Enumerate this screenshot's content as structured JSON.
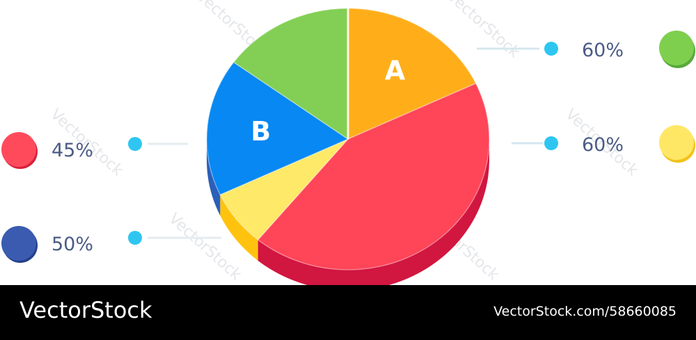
{
  "chart_data": {
    "type": "pie",
    "title": "",
    "slices": [
      {
        "label": "A",
        "share": 0.18,
        "color": "#ffae1a",
        "side": "#e69a10"
      },
      {
        "label": "",
        "share": 0.43,
        "color": "#ff4558",
        "side": "#d1163f"
      },
      {
        "label": "",
        "share": 0.07,
        "color": "#ffe968",
        "side": "#ffc30f"
      },
      {
        "label": "B",
        "share": 0.17,
        "color": "#0788f2",
        "side": "#2b5fb8"
      },
      {
        "label": "",
        "share": 0.15,
        "color": "#83cf55",
        "side": "#6ab63f"
      }
    ],
    "legend": {
      "right": [
        {
          "value": "60%",
          "swatch": "#7fcf4f",
          "swatch_edge": "#58a83a",
          "dot": "#2ec6f0"
        },
        {
          "value": "60%",
          "swatch": "#ffe766",
          "swatch_edge": "#f2c21a",
          "dot": "#2ec6f0"
        }
      ],
      "left": [
        {
          "value": "45%",
          "swatch": "#ff4a5c",
          "swatch_edge": "#d91f3a",
          "dot": "#2ec6f0"
        },
        {
          "value": "50%",
          "swatch": "#3a5bb0",
          "swatch_edge": "#233f8a",
          "dot": "#2ec6f0"
        }
      ]
    }
  },
  "watermark": "VectorStock",
  "footer": {
    "brand": "VectorStock",
    "credit": "VectorStock.com/58660085"
  }
}
